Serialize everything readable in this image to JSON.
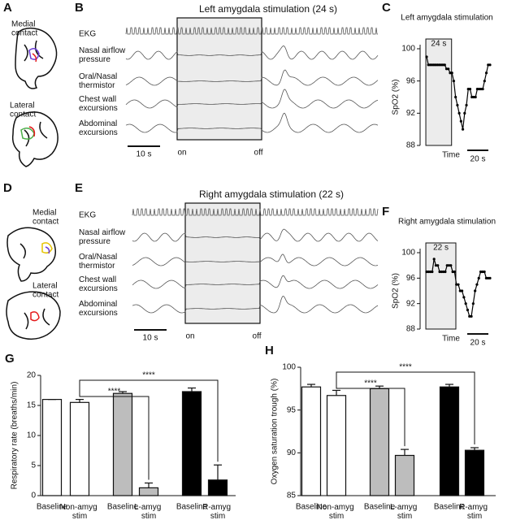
{
  "panel_a": {
    "letter": "A",
    "contacts": [
      [
        "Medial",
        "contact"
      ],
      [
        "Lateral",
        "contact"
      ]
    ]
  },
  "panel_b": {
    "letter": "B",
    "title": "Left amygdala stimulation (24 s)",
    "traces": [
      [
        "EKG"
      ],
      [
        "Nasal airflow",
        "pressure"
      ],
      [
        "Oral/Nasal",
        "thermistor"
      ],
      [
        "Chest wall",
        "excursions"
      ],
      [
        "Abdominal",
        "excursions"
      ]
    ],
    "scale_bar": "10 s",
    "on": "on",
    "off": "off"
  },
  "panel_d": {
    "letter": "D",
    "contacts": [
      [
        "Medial",
        "contact"
      ],
      [
        "Lateral",
        "contact"
      ]
    ]
  },
  "panel_e": {
    "letter": "E",
    "title": "Right amygdala stimulation (22 s)",
    "traces": [
      [
        "EKG"
      ],
      [
        "Nasal airflow",
        "pressure"
      ],
      [
        "Oral/Nasal",
        "thermistor"
      ],
      [
        "Chest wall",
        "excursions"
      ],
      [
        "Abdominal",
        "excursions"
      ]
    ],
    "scale_bar": "10 s",
    "on": "on",
    "off": "off"
  },
  "chart_data": [
    {
      "type": "line",
      "letter": "C",
      "title": "Left amygdala stimulation",
      "y_label": "SpO2 (%)",
      "x_label": "Time",
      "annotation": "24 s",
      "scale_bar": "20 s",
      "color": "#000000",
      "values": [
        99,
        98,
        98,
        98,
        98,
        98,
        98,
        98,
        98,
        98,
        98,
        97.5,
        97.5,
        97,
        97,
        96,
        94,
        93,
        92,
        91,
        90,
        92,
        93,
        95,
        95,
        94,
        94,
        94,
        95,
        95,
        95,
        95,
        96,
        97,
        98,
        98
      ],
      "ylim": [
        88,
        100
      ],
      "yticks": [
        88,
        92,
        96,
        100
      ]
    },
    {
      "type": "line",
      "letter": "F",
      "title": "Right amygdala stimulation",
      "y_label": "SpO2 (%)",
      "x_label": "Time",
      "annotation": "22 s",
      "scale_bar": "20 s",
      "color": "#000000",
      "values": [
        97,
        97,
        97,
        97,
        99,
        98,
        98,
        97,
        97,
        97,
        97,
        98,
        98,
        98,
        97,
        97,
        95,
        95,
        94,
        94,
        93,
        92,
        91,
        90,
        90,
        92,
        94,
        95,
        96,
        97,
        97,
        97,
        96,
        96,
        96
      ],
      "ylim": [
        88,
        100
      ],
      "yticks": [
        88,
        92,
        96,
        100
      ]
    },
    {
      "type": "bar",
      "letter": "G",
      "y_label": "Respiratory rate (breaths/min)",
      "categories": [
        "Baseline",
        "Non-amyg stim",
        "Baseline",
        "L-amyg stim",
        "Baseline",
        "R-amyg stim"
      ],
      "values": [
        16,
        15.5,
        17,
        1.3,
        17.3,
        2.6
      ],
      "errors": [
        0,
        0.5,
        0.3,
        0.8,
        0.6,
        2.5
      ],
      "colors": [
        "#ffffff",
        "#ffffff",
        "#bdbdbd",
        "#bdbdbd",
        "#000000",
        "#000000"
      ],
      "significance": [
        "****",
        "****"
      ],
      "ylim": [
        0,
        20
      ],
      "yticks": [
        0,
        5,
        10,
        15,
        20
      ]
    },
    {
      "type": "bar",
      "letter": "H",
      "y_label": "Oxygen saturation trough (%)",
      "categories": [
        "Baseline",
        "Non-amyg stim",
        "Baseline",
        "L-amyg stim",
        "Baseline",
        "R-amyg stim"
      ],
      "values": [
        97.7,
        96.7,
        97.5,
        89.7,
        97.7,
        90.3
      ],
      "errors": [
        0.3,
        0.6,
        0.3,
        0.7,
        0.3,
        0.3
      ],
      "colors": [
        "#ffffff",
        "#ffffff",
        "#bdbdbd",
        "#bdbdbd",
        "#000000",
        "#000000"
      ],
      "significance": [
        "****",
        "****"
      ],
      "ylim": [
        85,
        100
      ],
      "yticks": [
        85,
        90,
        95,
        100
      ]
    }
  ]
}
